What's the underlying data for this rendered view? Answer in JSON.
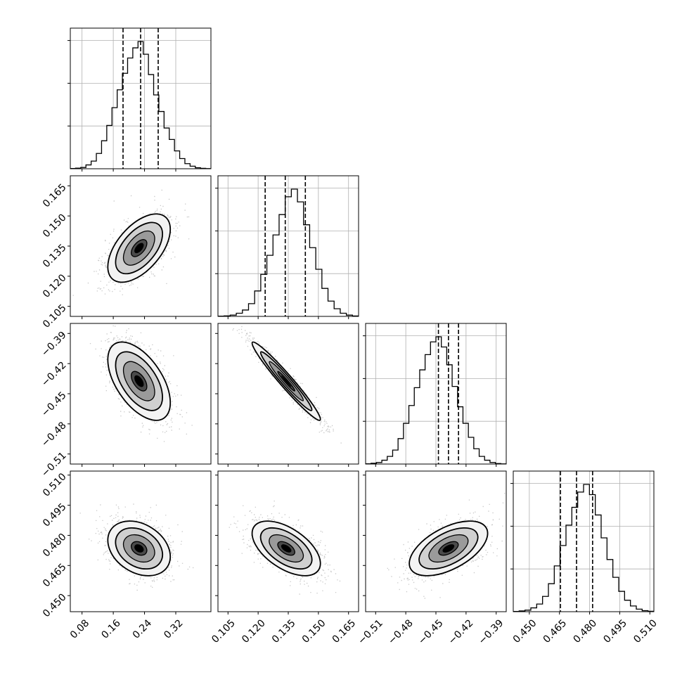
{
  "chart_data": {
    "type": "corner",
    "parameters": [
      {
        "label": "",
        "ticks": [
          "0.08",
          "0.16",
          "0.24",
          "0.32"
        ],
        "range": [
          0.05,
          0.41
        ],
        "quantiles": [
          0.185,
          0.23,
          0.275
        ],
        "histogram": [
          0.002,
          0.005,
          0.01,
          0.03,
          0.06,
          0.12,
          0.22,
          0.34,
          0.48,
          0.62,
          0.75,
          0.87,
          0.95,
          1.0,
          0.9,
          0.74,
          0.58,
          0.45,
          0.32,
          0.23,
          0.14,
          0.08,
          0.04,
          0.02,
          0.008,
          0.003,
          0.001
        ]
      },
      {
        "label": "",
        "ticks": [
          "0.105",
          "0.120",
          "0.135",
          "0.150",
          "0.165"
        ],
        "range": [
          0.1,
          0.17
        ],
        "quantiles": [
          0.1235,
          0.1335,
          0.1435
        ],
        "histogram": [
          0.002,
          0.004,
          0.01,
          0.025,
          0.05,
          0.1,
          0.2,
          0.33,
          0.48,
          0.64,
          0.8,
          0.94,
          1.0,
          0.9,
          0.72,
          0.54,
          0.37,
          0.22,
          0.12,
          0.06,
          0.025,
          0.01,
          0.003
        ]
      },
      {
        "label": "",
        "ticks": [
          "−0.51",
          "−0.48",
          "−0.45",
          "−0.42",
          "−0.39"
        ],
        "range": [
          -0.52,
          -0.38
        ],
        "quantiles": [
          -0.4475,
          -0.4375,
          -0.4275
        ],
        "histogram": [
          0.002,
          0.006,
          0.012,
          0.03,
          0.06,
          0.11,
          0.2,
          0.32,
          0.46,
          0.6,
          0.74,
          0.86,
          0.96,
          1.0,
          0.92,
          0.78,
          0.61,
          0.45,
          0.32,
          0.21,
          0.12,
          0.06,
          0.03,
          0.012,
          0.004,
          0.001
        ]
      },
      {
        "label": "",
        "ticks": [
          "0.450",
          "0.465",
          "0.480",
          "0.495",
          "0.510"
        ],
        "range": [
          0.442,
          0.512
        ],
        "quantiles": [
          0.4655,
          0.4735,
          0.4815
        ],
        "histogram": [
          0.002,
          0.006,
          0.012,
          0.03,
          0.06,
          0.12,
          0.22,
          0.36,
          0.52,
          0.68,
          0.82,
          0.94,
          1.0,
          0.92,
          0.76,
          0.58,
          0.41,
          0.27,
          0.16,
          0.09,
          0.045,
          0.02,
          0.008,
          0.003
        ]
      }
    ],
    "panels_2d": [
      {
        "row": 1,
        "col": 0,
        "means": [
          0.226,
          0.134
        ],
        "sd": [
          0.04,
          0.0085
        ],
        "corr": 0.55
      },
      {
        "row": 2,
        "col": 0,
        "means": [
          0.226,
          -0.4375
        ],
        "sd": [
          0.04,
          0.0195
        ],
        "corr": -0.55
      },
      {
        "row": 2,
        "col": 1,
        "means": [
          0.134,
          -0.4375
        ],
        "sd": [
          0.0085,
          0.0195
        ],
        "corr": -0.97
      },
      {
        "row": 3,
        "col": 0,
        "means": [
          0.226,
          0.4735
        ],
        "sd": [
          0.04,
          0.0068
        ],
        "corr": -0.3
      },
      {
        "row": 3,
        "col": 1,
        "means": [
          0.134,
          0.4735
        ],
        "sd": [
          0.0085,
          0.0068
        ],
        "corr": -0.55
      },
      {
        "row": 3,
        "col": 2,
        "means": [
          -0.4375,
          0.4735
        ],
        "sd": [
          0.0195,
          0.0068
        ],
        "corr": 0.55
      }
    ],
    "contour_levels_sigma": [
      0.5,
      1.0,
      1.5,
      2.0
    ],
    "grid": true
  }
}
